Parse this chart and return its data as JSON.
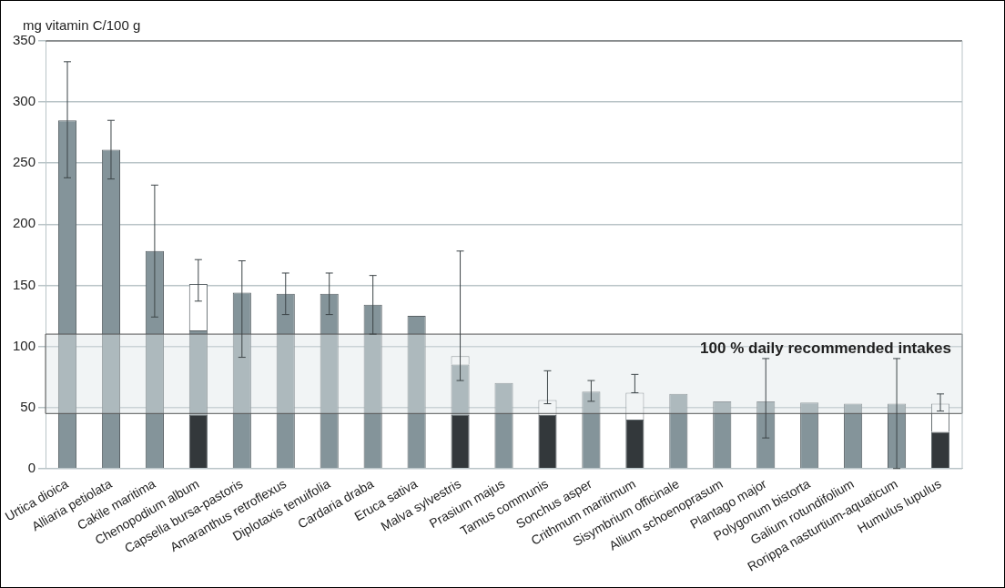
{
  "chart_data": {
    "type": "bar",
    "stacked": true,
    "ylabel": "mg vitamin C/100 g",
    "categories": [
      "Urtica dioica",
      "Alliaria petiolata",
      "Cakile maritima",
      "Chenopodium album",
      "Capsella bursa-pastoris",
      "Amaranthus retroflexus",
      "Diplotaxis tenuifolia",
      "Cardaria draba",
      "Eruca sativa",
      "Malva sylvestris",
      "Prasium majus",
      "Tamus communis",
      "Sonchus asper",
      "Crithmum maritimum",
      "Sisymbrium officinale",
      "Allium schoenoprasum",
      "Plantago major",
      "Polygonum bistorta",
      "Galium rotundifolium",
      "Rorippa nasturtium-aquaticum",
      "Humulus lupulus"
    ],
    "series": [
      {
        "color": "#33383b",
        "values": [
          null,
          null,
          null,
          44,
          null,
          null,
          null,
          null,
          null,
          44,
          null,
          44,
          null,
          40,
          null,
          null,
          null,
          null,
          null,
          null,
          30
        ]
      },
      {
        "color": "#84949a",
        "values": [
          285,
          261,
          178,
          69,
          144,
          143,
          143,
          134,
          125,
          41,
          70,
          null,
          63,
          null,
          61,
          55,
          55,
          54,
          53,
          53,
          null
        ],
        "errors": [
          [
            238,
            333
          ],
          [
            237,
            285
          ],
          [
            124,
            232
          ],
          null,
          [
            91,
            170
          ],
          [
            126,
            160
          ],
          [
            126,
            160
          ],
          [
            110,
            158
          ],
          null,
          null,
          null,
          null,
          [
            55,
            72
          ],
          null,
          null,
          null,
          [
            25,
            90
          ],
          null,
          null,
          [
            0,
            90
          ],
          null
        ]
      },
      {
        "color": "#ffffff",
        "values": [
          null,
          null,
          null,
          38,
          null,
          null,
          null,
          null,
          null,
          7,
          null,
          12,
          null,
          22,
          null,
          null,
          null,
          null,
          null,
          null,
          23
        ],
        "errors": [
          null,
          null,
          null,
          [
            137,
            171
          ],
          null,
          null,
          null,
          null,
          null,
          [
            72,
            178
          ],
          null,
          [
            53,
            80
          ],
          null,
          [
            62,
            77
          ],
          null,
          null,
          null,
          null,
          null,
          null,
          [
            47,
            61
          ]
        ]
      }
    ],
    "ylim": [
      0,
      350
    ],
    "yticks": [
      0,
      50,
      100,
      150,
      200,
      250,
      300,
      350
    ],
    "grid": "y",
    "legend": false,
    "bands": [
      {
        "axis": "y",
        "from": 45,
        "to": 110,
        "label": "100 % daily recommended intakes",
        "color": "#dfe6e8"
      }
    ]
  }
}
